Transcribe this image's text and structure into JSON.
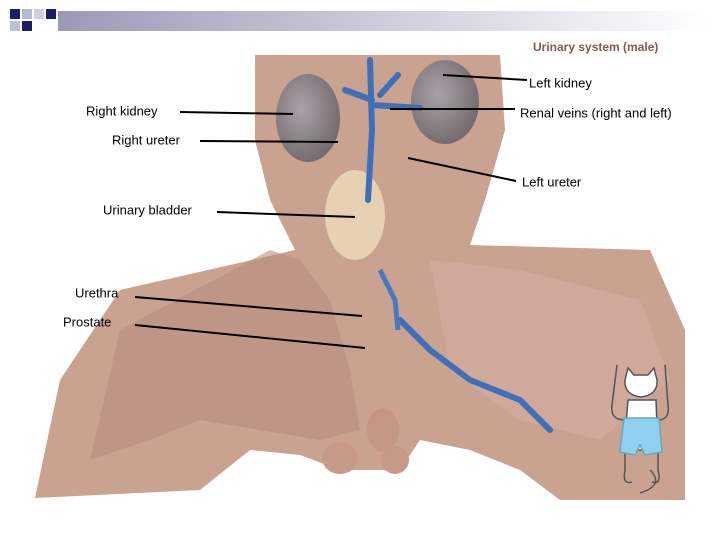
{
  "title": "Urinary system (male)",
  "labels": [
    {
      "text": "Left kidney"
    },
    {
      "text": "Right kidney"
    },
    {
      "text": "Renal veins (right and left)"
    },
    {
      "text": "Right ureter"
    },
    {
      "text": "Left ureter"
    },
    {
      "text": "Urinary bladder"
    },
    {
      "text": "Urethra"
    },
    {
      "text": "Prostate"
    }
  ]
}
